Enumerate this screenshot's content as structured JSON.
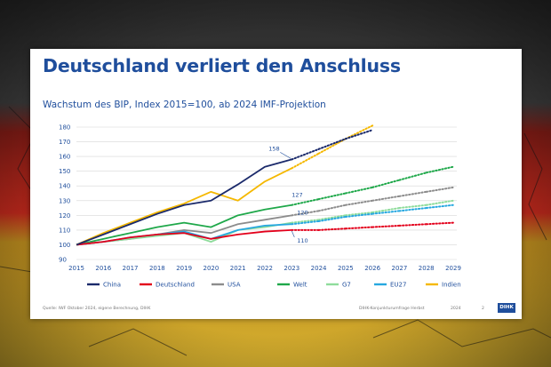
{
  "title": "Deutschland verliert den Anschluss",
  "subtitle": "Wachstum des BIP, Index 2015=100, ab 2024 IMF-Projektion",
  "footer": {
    "source": "Quelle: IWF Oktober 2024, eigene Berechnung, DIHK",
    "report": "DIHK-Konjunkturumfrage Herbst",
    "year": "2024",
    "page": "2",
    "logo": "DIHK"
  },
  "colors": {
    "China": "#1b2a6b",
    "Deutschland": "#e3001b",
    "USA": "#8c8c8c",
    "Welt": "#1fa84a",
    "G7": "#8fdc9c",
    "EU27": "#27a8e0",
    "Indien": "#f5b800",
    "title": "#1f4e9c"
  },
  "chart_data": {
    "type": "line",
    "title": "Wachstum des BIP, Index 2015=100, ab 2024 IMF-Projektion",
    "xlabel": "",
    "ylabel": "",
    "x": [
      2015,
      2016,
      2017,
      2018,
      2019,
      2020,
      2021,
      2022,
      2023,
      2024,
      2025,
      2026,
      2027,
      2028,
      2029
    ],
    "ylim": [
      90,
      180
    ],
    "yticks": [
      90,
      100,
      110,
      120,
      130,
      140,
      150,
      160,
      170,
      180
    ],
    "projection_start": 2023,
    "grid": "horizontal",
    "legend": "bottom",
    "series": [
      {
        "name": "China",
        "values": [
          100,
          107,
          114,
          121,
          127,
          130,
          141,
          153,
          158,
          165,
          172,
          178,
          null,
          null,
          null
        ]
      },
      {
        "name": "Deutschland",
        "values": [
          100,
          102,
          105,
          107,
          108,
          104,
          107,
          109,
          110,
          110,
          111,
          112,
          113,
          114,
          115
        ]
      },
      {
        "name": "USA",
        "values": [
          100,
          102,
          104,
          107,
          110,
          108,
          114,
          117,
          120,
          123,
          127,
          130,
          133,
          136,
          139
        ]
      },
      {
        "name": "Welt",
        "values": [
          100,
          104,
          108,
          112,
          115,
          112,
          120,
          124,
          127,
          131,
          135,
          139,
          144,
          149,
          153
        ]
      },
      {
        "name": "G7",
        "values": [
          100,
          102,
          104,
          106,
          108,
          102,
          110,
          112,
          115,
          117,
          120,
          122,
          125,
          127,
          130
        ]
      },
      {
        "name": "EU27",
        "values": [
          100,
          102,
          105,
          107,
          109,
          104,
          110,
          113,
          114,
          116,
          119,
          121,
          123,
          125,
          127
        ]
      },
      {
        "name": "Indien",
        "values": [
          100,
          108,
          115,
          122,
          128,
          136,
          130,
          143,
          152,
          162,
          172,
          181,
          null,
          null,
          null
        ]
      }
    ],
    "annotations": [
      {
        "series": "China",
        "x": 2023,
        "label": "158"
      },
      {
        "series": "Welt",
        "x": 2023,
        "label": "127"
      },
      {
        "series": "USA",
        "x": 2023,
        "label": "120"
      },
      {
        "series": "Deutschland",
        "x": 2023,
        "label": "110"
      }
    ]
  }
}
